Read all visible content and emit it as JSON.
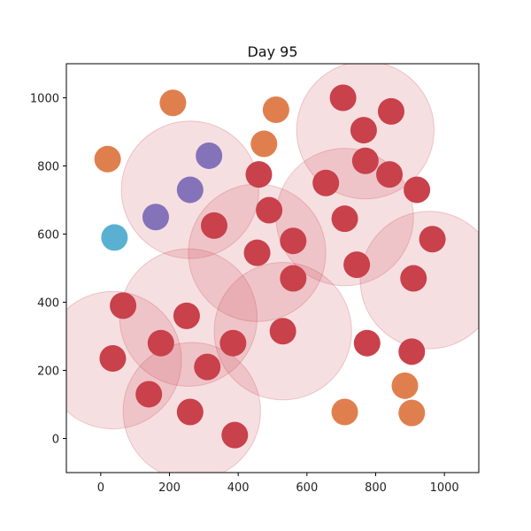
{
  "chart_data": {
    "type": "scatter",
    "title": "Day 95",
    "xlabel": "",
    "ylabel": "",
    "xlim": [
      -100,
      1100
    ],
    "ylim": [
      -100,
      1100
    ],
    "xticks": [
      "0",
      "200",
      "400",
      "600",
      "800",
      "1000"
    ],
    "yticks": [
      "0",
      "200",
      "400",
      "600",
      "800",
      "1000"
    ],
    "grid": false,
    "halo_color": "#c8414b",
    "halo_radius": 200,
    "halos": [
      {
        "x": 770,
        "y": 905
      },
      {
        "x": 260,
        "y": 730
      },
      {
        "x": 710,
        "y": 650
      },
      {
        "x": 455,
        "y": 545
      },
      {
        "x": 955,
        "y": 465
      },
      {
        "x": 255,
        "y": 355
      },
      {
        "x": 530,
        "y": 315
      },
      {
        "x": 35,
        "y": 230
      },
      {
        "x": 265,
        "y": 80
      }
    ],
    "series": [
      {
        "color": "#c8414b",
        "points": [
          {
            "x": 705,
            "y": 1000
          },
          {
            "x": 845,
            "y": 960
          },
          {
            "x": 765,
            "y": 905
          },
          {
            "x": 770,
            "y": 815
          },
          {
            "x": 840,
            "y": 775
          },
          {
            "x": 920,
            "y": 730
          },
          {
            "x": 655,
            "y": 750
          },
          {
            "x": 460,
            "y": 775
          },
          {
            "x": 490,
            "y": 670
          },
          {
            "x": 710,
            "y": 645
          },
          {
            "x": 330,
            "y": 625
          },
          {
            "x": 560,
            "y": 580
          },
          {
            "x": 455,
            "y": 545
          },
          {
            "x": 745,
            "y": 510
          },
          {
            "x": 965,
            "y": 585
          },
          {
            "x": 910,
            "y": 470
          },
          {
            "x": 560,
            "y": 470
          },
          {
            "x": 65,
            "y": 390
          },
          {
            "x": 250,
            "y": 360
          },
          {
            "x": 175,
            "y": 280
          },
          {
            "x": 385,
            "y": 280
          },
          {
            "x": 530,
            "y": 315
          },
          {
            "x": 775,
            "y": 280
          },
          {
            "x": 905,
            "y": 255
          },
          {
            "x": 35,
            "y": 235
          },
          {
            "x": 310,
            "y": 210
          },
          {
            "x": 140,
            "y": 130
          },
          {
            "x": 260,
            "y": 78
          },
          {
            "x": 390,
            "y": 10
          }
        ]
      },
      {
        "color": "#e07f4e",
        "points": [
          {
            "x": 210,
            "y": 985
          },
          {
            "x": 510,
            "y": 965
          },
          {
            "x": 475,
            "y": 865
          },
          {
            "x": 20,
            "y": 820
          },
          {
            "x": 885,
            "y": 155
          },
          {
            "x": 710,
            "y": 78
          },
          {
            "x": 905,
            "y": 75
          }
        ]
      },
      {
        "color": "#8473b8",
        "points": [
          {
            "x": 315,
            "y": 830
          },
          {
            "x": 260,
            "y": 730
          },
          {
            "x": 160,
            "y": 650
          }
        ]
      },
      {
        "color": "#5ab0d0",
        "points": [
          {
            "x": 40,
            "y": 590
          }
        ]
      }
    ]
  }
}
